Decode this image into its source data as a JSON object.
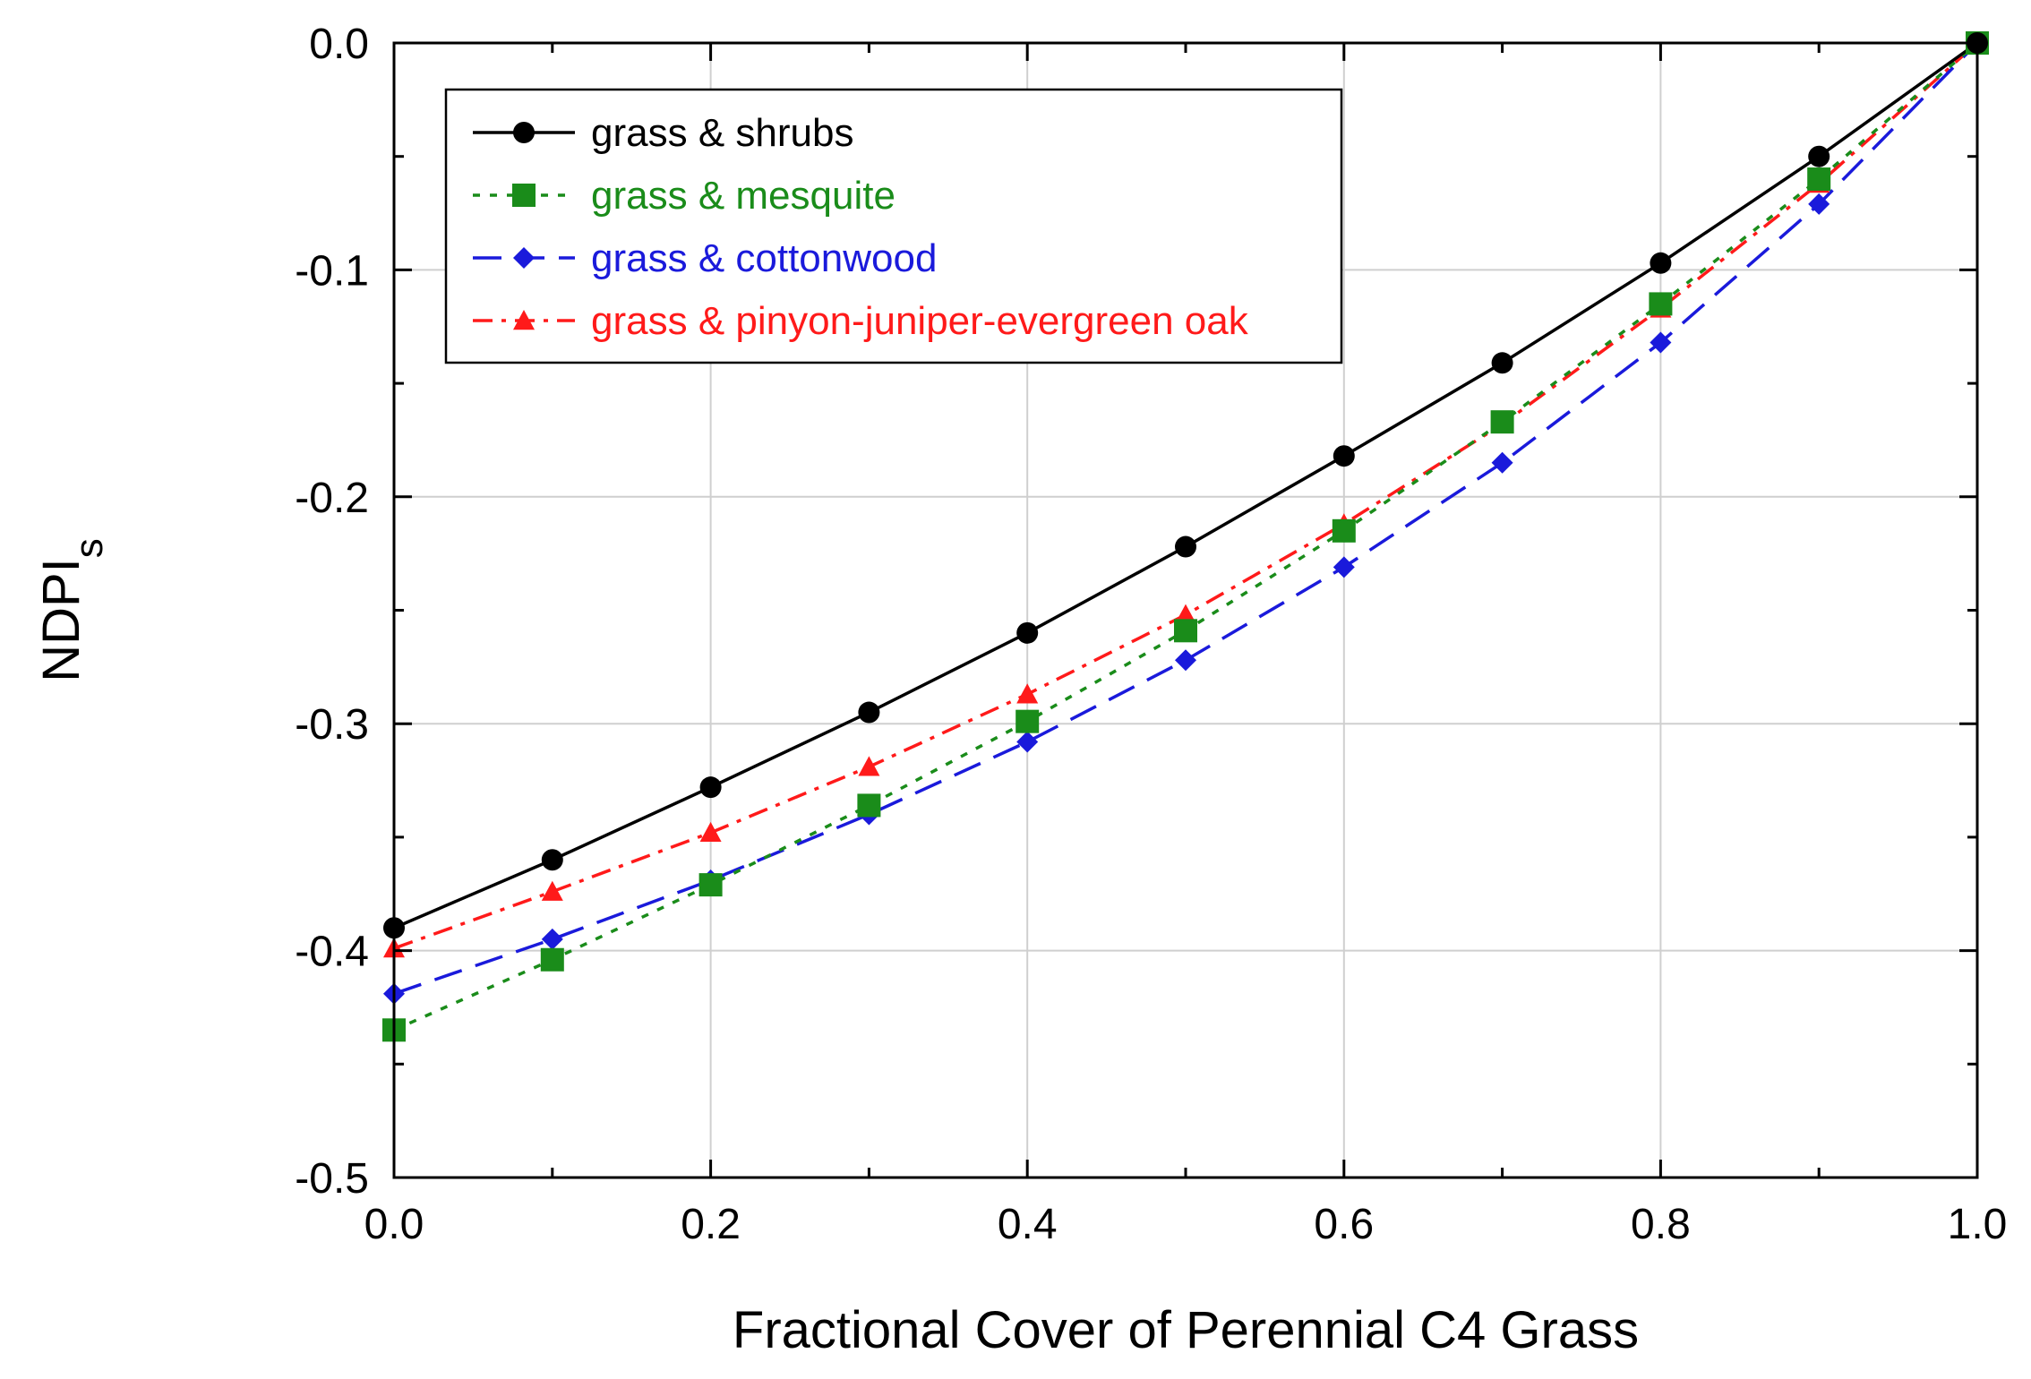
{
  "chart_data": {
    "type": "line",
    "title": "",
    "xlabel": "Fractional Cover of Perennial C4 Grass",
    "ylabel": "NDPI",
    "ylabel_subscript": "s",
    "xlim": [
      0.0,
      1.0
    ],
    "ylim": [
      -0.5,
      0.0
    ],
    "grid": true,
    "legend_position": "top-left",
    "x_ticks": [
      "0.0",
      "0.2",
      "0.4",
      "0.6",
      "0.8",
      "1.0"
    ],
    "x_tick_values": [
      0.0,
      0.2,
      0.4,
      0.6,
      0.8,
      1.0
    ],
    "y_ticks": [
      "0.0",
      "-0.1",
      "-0.2",
      "-0.3",
      "-0.4",
      "-0.5"
    ],
    "y_tick_values": [
      0.0,
      -0.1,
      -0.2,
      -0.3,
      -0.4,
      -0.5
    ],
    "x": [
      0.0,
      0.1,
      0.2,
      0.3,
      0.4,
      0.5,
      0.6,
      0.7,
      0.8,
      0.9,
      1.0
    ],
    "series": [
      {
        "name": "grass & shrubs",
        "color": "#000000",
        "marker": "circle",
        "dash": "none",
        "values": [
          -0.39,
          -0.36,
          -0.328,
          -0.295,
          -0.26,
          -0.222,
          -0.182,
          -0.141,
          -0.097,
          -0.05,
          0.0
        ]
      },
      {
        "name": "grass & mesquite",
        "color": "#1a8c1a",
        "marker": "square",
        "dash": "short",
        "values": [
          -0.435,
          -0.404,
          -0.371,
          -0.336,
          -0.299,
          -0.259,
          -0.215,
          -0.167,
          -0.115,
          -0.06,
          0.0
        ]
      },
      {
        "name": "grass & cottonwood",
        "color": "#1a1adb",
        "marker": "diamond",
        "dash": "long",
        "values": [
          -0.419,
          -0.395,
          -0.369,
          -0.34,
          -0.308,
          -0.272,
          -0.231,
          -0.185,
          -0.132,
          -0.071,
          0.0
        ]
      },
      {
        "name": "grass & pinyon-juniper-evergreen oak",
        "color": "#ff1a1a",
        "marker": "triangle",
        "dash": "dashdot",
        "values": [
          -0.399,
          -0.374,
          -0.348,
          -0.319,
          -0.287,
          -0.252,
          -0.212,
          -0.168,
          -0.117,
          -0.062,
          0.0
        ]
      }
    ]
  }
}
